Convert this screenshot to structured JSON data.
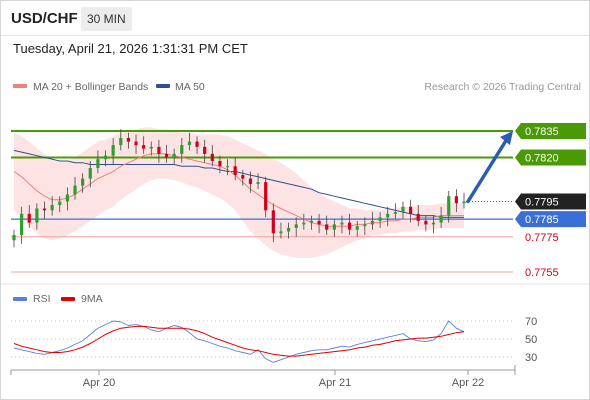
{
  "header": {
    "symbol": "USD/CHF",
    "interval": "30 MIN",
    "datetime": "Tuesday, April 21, 2026 1:31:31 PM CET"
  },
  "legend": {
    "bollinger_label": "MA 20 + Bollinger Bands",
    "ma50_label": "MA 50",
    "credit": "Research © 2026 Trading Central"
  },
  "colors": {
    "up": "#2ca02c",
    "down": "#d0021b",
    "green_line": "#4a9a06",
    "blue_line": "#3a6fd8",
    "red_line": "#d0021b",
    "ma20": "#f08080",
    "band_fill": "#fde3e3",
    "ma50": "#2f4f8f",
    "rsi": "#5b7fe0",
    "rsi_ma": "#e00000",
    "arrow": "#2a5db0"
  },
  "chart_data": [
    {
      "type": "candlestick",
      "x_tick_labels": [
        "Apr 20",
        "Apr 21",
        "Apr 22"
      ],
      "ylim": [
        0.7745,
        0.7845
      ],
      "levels": [
        {
          "label": "0.7835",
          "value": 0.7835,
          "kind": "resistance",
          "style": "green"
        },
        {
          "label": "0.7820",
          "value": 0.782,
          "kind": "resistance",
          "style": "green"
        },
        {
          "label": "0.7795",
          "value": 0.7795,
          "kind": "last-price",
          "style": "dotted"
        },
        {
          "label": "0.7785",
          "value": 0.7785,
          "kind": "pivot",
          "style": "blue"
        },
        {
          "label": "0.7775",
          "value": 0.7775,
          "kind": "support",
          "style": "red"
        },
        {
          "label": "0.7755",
          "value": 0.7755,
          "kind": "support",
          "style": "red"
        }
      ],
      "arrow": {
        "from_value": 0.7795,
        "to_value": 0.7835
      },
      "closes": [
        0.7776,
        0.7788,
        0.7783,
        0.7791,
        0.779,
        0.7793,
        0.7795,
        0.7799,
        0.7804,
        0.7808,
        0.7814,
        0.7819,
        0.7821,
        0.7827,
        0.7831,
        0.7829,
        0.7827,
        0.7825,
        0.7826,
        0.7822,
        0.782,
        0.7822,
        0.7827,
        0.7829,
        0.7826,
        0.7822,
        0.7818,
        0.7815,
        0.7815,
        0.781,
        0.7808,
        0.7805,
        0.7806,
        0.779,
        0.7777,
        0.7778,
        0.778,
        0.7782,
        0.7783,
        0.7784,
        0.7782,
        0.7779,
        0.7782,
        0.7783,
        0.7779,
        0.7781,
        0.7782,
        0.7784,
        0.7786,
        0.7788,
        0.7789,
        0.7792,
        0.7788,
        0.7784,
        0.7782,
        0.7783,
        0.7787,
        0.7798,
        0.7794,
        0.7795
      ],
      "ma20": [
        0.7812,
        0.7809,
        0.7805,
        0.7801,
        0.7798,
        0.7796,
        0.7796,
        0.7797,
        0.7799,
        0.7802,
        0.7805,
        0.7808,
        0.781,
        0.7812,
        0.7815,
        0.7817,
        0.7819,
        0.7821,
        0.7822,
        0.7822,
        0.7822,
        0.7821,
        0.782,
        0.7819,
        0.7818,
        0.7817,
        0.7816,
        0.7815,
        0.7813,
        0.781,
        0.7806,
        0.7802,
        0.7799,
        0.7796,
        0.7793,
        0.7791,
        0.7789,
        0.7787,
        0.7785,
        0.7783,
        0.7782,
        0.7781,
        0.7781,
        0.7781,
        0.7781,
        0.7782,
        0.7782,
        0.7783,
        0.7783,
        0.7784,
        0.7784,
        0.7785,
        0.7785,
        0.7786,
        0.7786,
        0.7786,
        0.7787,
        0.7787,
        0.7787,
        0.7787
      ],
      "ma50": [
        0.7824,
        0.7823,
        0.7822,
        0.7821,
        0.782,
        0.7819,
        0.7818,
        0.7818,
        0.7817,
        0.7817,
        0.7816,
        0.7816,
        0.7816,
        0.7816,
        0.7816,
        0.7816,
        0.7816,
        0.7816,
        0.7816,
        0.7816,
        0.7816,
        0.7816,
        0.7815,
        0.7815,
        0.7815,
        0.7814,
        0.7814,
        0.7813,
        0.7812,
        0.7812,
        0.7811,
        0.781,
        0.7809,
        0.7808,
        0.7807,
        0.7806,
        0.7805,
        0.7804,
        0.7803,
        0.7802,
        0.78,
        0.7799,
        0.7798,
        0.7797,
        0.7796,
        0.7795,
        0.7794,
        0.7793,
        0.7792,
        0.7791,
        0.779,
        0.7789,
        0.7788,
        0.7787,
        0.7787,
        0.7787,
        0.7786,
        0.7786,
        0.7786,
        0.7786
      ],
      "band_width": [
        0.0022,
        0.0023,
        0.0024,
        0.0024,
        0.0024,
        0.0023,
        0.0022,
        0.0021,
        0.0021,
        0.0021,
        0.0021,
        0.0021,
        0.002,
        0.002,
        0.0019,
        0.0018,
        0.0017,
        0.0016,
        0.0015,
        0.0014,
        0.0014,
        0.0014,
        0.0014,
        0.0015,
        0.0015,
        0.0016,
        0.0017,
        0.0018,
        0.0019,
        0.002,
        0.0022,
        0.0024,
        0.0025,
        0.0026,
        0.0026,
        0.0026,
        0.0025,
        0.0024,
        0.0022,
        0.002,
        0.0018,
        0.0016,
        0.0014,
        0.0012,
        0.001,
        0.0009,
        0.0008,
        0.0007,
        0.0007,
        0.0007,
        0.0007,
        0.0007,
        0.0007,
        0.0007,
        0.0007,
        0.0007,
        0.0007,
        0.0007,
        0.0007,
        0.0007
      ]
    },
    {
      "type": "line",
      "legend": [
        "RSI",
        "9MA"
      ],
      "ylim": [
        20,
        80
      ],
      "y_tick_labels": [
        "70",
        "50",
        "30"
      ],
      "y_ticks": [
        70,
        50,
        30
      ],
      "rsi": [
        40,
        38,
        36,
        34,
        33,
        35,
        37,
        40,
        44,
        48,
        55,
        62,
        66,
        70,
        69,
        65,
        66,
        64,
        60,
        58,
        62,
        65,
        63,
        57,
        50,
        48,
        45,
        42,
        40,
        37,
        35,
        33,
        38,
        28,
        24,
        27,
        30,
        33,
        35,
        37,
        38,
        38,
        40,
        42,
        41,
        44,
        46,
        48,
        50,
        52,
        54,
        56,
        50,
        48,
        47,
        49,
        56,
        70,
        62,
        58
      ],
      "rsi_ma": [
        45,
        42,
        40,
        38,
        36,
        35,
        35,
        36,
        38,
        41,
        45,
        50,
        55,
        59,
        62,
        63,
        64,
        64,
        63,
        62,
        62,
        62,
        62,
        61,
        59,
        56,
        52,
        49,
        46,
        43,
        40,
        38,
        37,
        35,
        33,
        32,
        31,
        31,
        32,
        33,
        34,
        35,
        36,
        37,
        38,
        40,
        41,
        43,
        44,
        46,
        48,
        49,
        50,
        51,
        51,
        52,
        53,
        55,
        57,
        58
      ]
    }
  ]
}
